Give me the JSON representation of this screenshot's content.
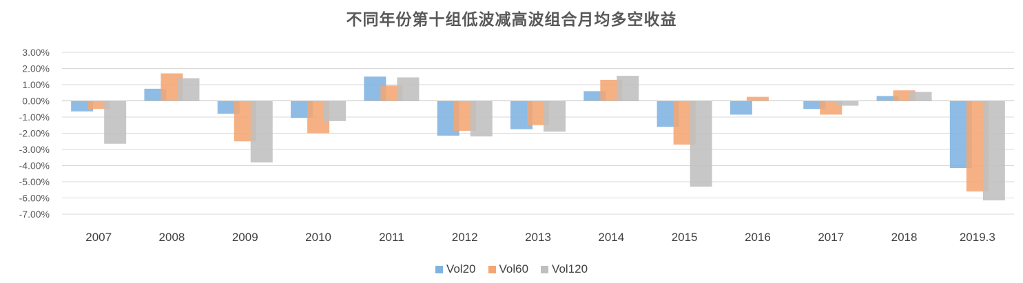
{
  "chart_data": {
    "type": "bar",
    "title": "不同年份第十组低波减高波组合月均多空收益",
    "categories": [
      "2007",
      "2008",
      "2009",
      "2010",
      "2011",
      "2012",
      "2013",
      "2014",
      "2015",
      "2016",
      "2017",
      "2018",
      "2019.3"
    ],
    "series": [
      {
        "name": "Vol20",
        "color": "#7EB3E0",
        "values": [
          -0.65,
          0.75,
          -0.8,
          -1.05,
          1.5,
          -2.15,
          -1.75,
          0.6,
          -1.6,
          -0.85,
          -0.5,
          0.3,
          -4.15
        ]
      },
      {
        "name": "Vol60",
        "color": "#F4A673",
        "values": [
          -0.5,
          1.7,
          -2.5,
          -2.0,
          0.95,
          -1.85,
          -1.5,
          1.3,
          -2.7,
          0.25,
          -0.85,
          0.65,
          -5.6
        ]
      },
      {
        "name": "Vol120",
        "color": "#BFBFBF",
        "values": [
          -2.65,
          1.4,
          -3.8,
          -1.25,
          1.45,
          -2.2,
          -1.9,
          1.55,
          -5.3,
          0.0,
          -0.3,
          0.55,
          -6.15
        ]
      }
    ],
    "ylim": [
      -7,
      3
    ],
    "yticks": [
      "3.00%",
      "2.00%",
      "1.00%",
      "0.00%",
      "-1.00%",
      "-2.00%",
      "-3.00%",
      "-4.00%",
      "-5.00%",
      "-6.00%",
      "-7.00%"
    ],
    "grid": true,
    "legend_position": "bottom"
  }
}
